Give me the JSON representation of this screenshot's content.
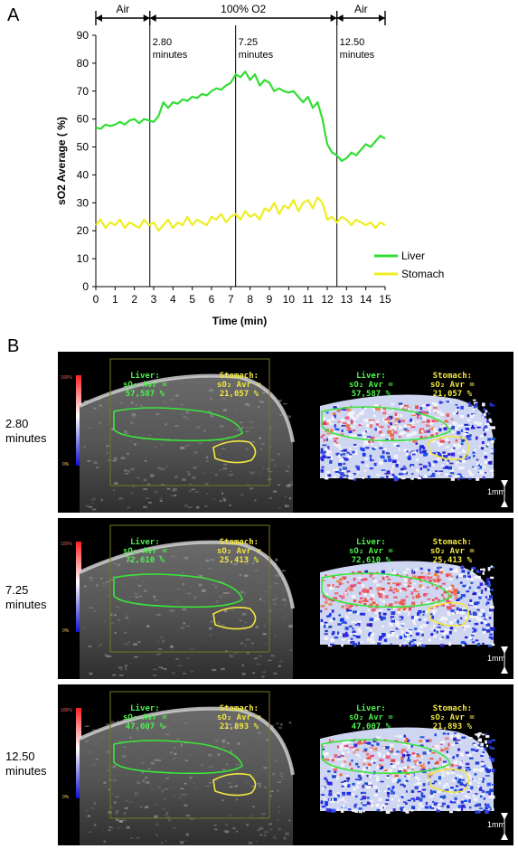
{
  "panels": {
    "a": "A",
    "b": "B"
  },
  "chart_data": {
    "type": "line",
    "title": "",
    "xlabel": "Time (min)",
    "ylabel": "sO2 Average ( %)",
    "xlim": [
      0,
      15
    ],
    "ylim": [
      0,
      90
    ],
    "xticks": [
      0,
      1,
      2,
      3,
      4,
      5,
      6,
      7,
      8,
      9,
      10,
      11,
      12,
      13,
      14,
      15
    ],
    "yticks": [
      0,
      10,
      20,
      30,
      40,
      50,
      60,
      70,
      80,
      90
    ],
    "grid": false,
    "legend_position": "bottom-right",
    "phases": [
      {
        "label": "Air",
        "start": 0,
        "end": 2.8
      },
      {
        "label": "100% O2",
        "start": 2.8,
        "end": 12.5
      },
      {
        "label": "Air",
        "start": 12.5,
        "end": 15
      }
    ],
    "markers": [
      {
        "x": 2.8,
        "label1": "2.80",
        "label2": "minutes"
      },
      {
        "x": 7.25,
        "label1": "7.25",
        "label2": "minutes"
      },
      {
        "x": 12.5,
        "label1": "12.50",
        "label2": "minutes"
      }
    ],
    "series": [
      {
        "name": "Liver",
        "color": "#33dd33",
        "x": [
          0,
          0.25,
          0.5,
          0.75,
          1,
          1.25,
          1.5,
          1.75,
          2,
          2.25,
          2.5,
          2.75,
          3,
          3.25,
          3.5,
          3.75,
          4,
          4.25,
          4.5,
          4.75,
          5,
          5.25,
          5.5,
          5.75,
          6,
          6.25,
          6.5,
          6.75,
          7,
          7.25,
          7.5,
          7.75,
          8,
          8.25,
          8.5,
          8.75,
          9,
          9.25,
          9.5,
          9.75,
          10,
          10.25,
          10.5,
          10.75,
          11,
          11.25,
          11.5,
          11.75,
          12,
          12.25,
          12.5,
          12.75,
          13,
          13.25,
          13.5,
          13.75,
          14,
          14.25,
          14.5,
          14.75,
          15
        ],
        "y": [
          57,
          56.5,
          58,
          57.5,
          58,
          59,
          58,
          59.5,
          60,
          58.5,
          60,
          59.5,
          59,
          61,
          66,
          64,
          66,
          65.5,
          67,
          66.5,
          68,
          67.5,
          69,
          68.5,
          70,
          71,
          70.5,
          72,
          73,
          76,
          75,
          77,
          74,
          76,
          72,
          74,
          73,
          70,
          71,
          70,
          69.5,
          70,
          68,
          66,
          68,
          64,
          66,
          60,
          51,
          48,
          47,
          45,
          46,
          48,
          47,
          49,
          51,
          50,
          52,
          54,
          53
        ]
      },
      {
        "name": "Stomach",
        "color": "#eeee22",
        "x": [
          0,
          0.25,
          0.5,
          0.75,
          1,
          1.25,
          1.5,
          1.75,
          2,
          2.25,
          2.5,
          2.75,
          3,
          3.25,
          3.5,
          3.75,
          4,
          4.25,
          4.5,
          4.75,
          5,
          5.25,
          5.5,
          5.75,
          6,
          6.25,
          6.5,
          6.75,
          7,
          7.25,
          7.5,
          7.75,
          8,
          8.25,
          8.5,
          8.75,
          9,
          9.25,
          9.5,
          9.75,
          10,
          10.25,
          10.5,
          10.75,
          11,
          11.25,
          11.5,
          11.75,
          12,
          12.25,
          12.5,
          12.75,
          13,
          13.25,
          13.5,
          13.75,
          14,
          14.25,
          14.5,
          14.75,
          15
        ],
        "y": [
          22,
          24,
          21,
          23,
          22,
          24,
          21,
          23,
          22,
          21,
          24,
          22,
          23,
          20,
          22,
          24,
          21,
          23,
          22,
          25,
          22,
          24,
          23,
          22,
          25,
          24,
          26,
          23,
          25,
          26,
          24,
          27,
          25,
          26,
          24,
          28,
          27,
          30,
          26,
          29,
          28,
          31,
          27,
          30,
          31,
          28,
          32,
          30,
          24,
          25,
          23,
          25,
          24,
          22,
          24,
          23,
          22,
          23,
          21,
          23,
          22
        ]
      }
    ]
  },
  "rows": [
    {
      "label1": "2.80",
      "label2": "minutes",
      "liver_title": "Liver:",
      "liver_metric": "sO₂ Avr =",
      "liver_value": "57,587 %",
      "stomach_title": "Stomach:",
      "stomach_metric": "sO₂ Avr =",
      "stomach_value": "21,057 %",
      "scale": "1mm"
    },
    {
      "label1": "7.25",
      "label2": "minutes",
      "liver_title": "Liver:",
      "liver_metric": "sO₂ Avr =",
      "liver_value": "72,610 %",
      "stomach_title": "Stomach:",
      "stomach_metric": "sO₂ Avr =",
      "stomach_value": "25,413 %",
      "scale": "1mm"
    },
    {
      "label1": "12.50",
      "label2": "minutes",
      "liver_title": "Liver:",
      "liver_metric": "sO₂ Avr =",
      "liver_value": "47,007 %",
      "stomach_title": "Stomach:",
      "stomach_metric": "sO₂ Avr =",
      "stomach_value": "21,893 %",
      "scale": "1mm"
    }
  ],
  "colorbar": {
    "top": "100%",
    "bottom": "0%"
  }
}
